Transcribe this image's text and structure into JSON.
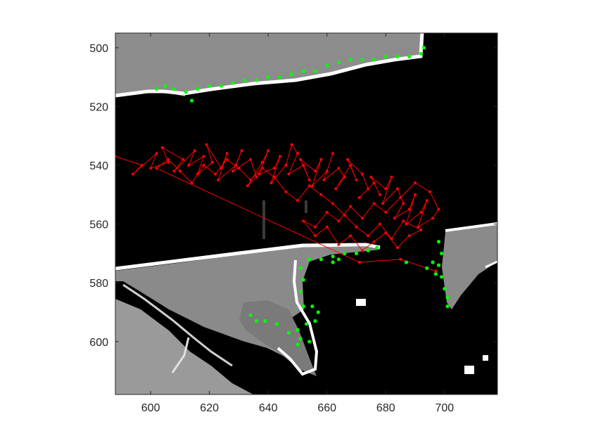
{
  "chart_data": {
    "type": "scatter",
    "title": "",
    "xlabel": "",
    "ylabel": "",
    "xlim": [
      588,
      718
    ],
    "ylim": [
      495,
      618
    ],
    "y_reversed": true,
    "grid": false,
    "background": "grayscale image",
    "xticks": [
      600,
      620,
      640,
      660,
      680,
      700
    ],
    "yticks": [
      500,
      520,
      540,
      560,
      580,
      600
    ],
    "xtick_labels": [
      "600",
      "620",
      "640",
      "660",
      "680",
      "700"
    ],
    "ytick_labels": [
      "500",
      "520",
      "540",
      "560",
      "580",
      "600"
    ],
    "series": [
      {
        "color": "#ff0000",
        "style": "line-with-markers",
        "points": [
          [
            588,
            537
          ],
          [
            597,
            540
          ],
          [
            594,
            543
          ],
          [
            602,
            536
          ],
          [
            600,
            541
          ],
          [
            606,
            539
          ],
          [
            604,
            534
          ],
          [
            611,
            538
          ],
          [
            608,
            542
          ],
          [
            615,
            535
          ],
          [
            613,
            540
          ],
          [
            618,
            537
          ],
          [
            616,
            543
          ],
          [
            621,
            539
          ],
          [
            619,
            533
          ],
          [
            624,
            541
          ],
          [
            626,
            536
          ],
          [
            623,
            545
          ],
          [
            629,
            540
          ],
          [
            631,
            535
          ],
          [
            628,
            542
          ],
          [
            634,
            538
          ],
          [
            636,
            544
          ],
          [
            633,
            547
          ],
          [
            638,
            539
          ],
          [
            640,
            535
          ],
          [
            637,
            543
          ],
          [
            642,
            541
          ],
          [
            644,
            537
          ],
          [
            641,
            546
          ],
          [
            646,
            540
          ],
          [
            648,
            533
          ],
          [
            650,
            536
          ],
          [
            647,
            543
          ],
          [
            652,
            540
          ],
          [
            654,
            545
          ],
          [
            651,
            538
          ],
          [
            656,
            542
          ],
          [
            658,
            538
          ],
          [
            655,
            547
          ],
          [
            660,
            542
          ],
          [
            662,
            536
          ],
          [
            659,
            545
          ],
          [
            664,
            541
          ],
          [
            666,
            544
          ],
          [
            663,
            548
          ],
          [
            668,
            540
          ],
          [
            670,
            545
          ],
          [
            667,
            538
          ],
          [
            672,
            543
          ],
          [
            674,
            548
          ],
          [
            671,
            551
          ],
          [
            676,
            546
          ],
          [
            678,
            550
          ],
          [
            675,
            544
          ],
          [
            680,
            548
          ],
          [
            682,
            544
          ],
          [
            679,
            553
          ],
          [
            684,
            548
          ],
          [
            686,
            553
          ],
          [
            683,
            558
          ],
          [
            688,
            555
          ],
          [
            690,
            550
          ],
          [
            687,
            560
          ],
          [
            692,
            556
          ],
          [
            694,
            552
          ],
          [
            691,
            561
          ],
          [
            696,
            558
          ],
          [
            698,
            555
          ],
          [
            695,
            549
          ],
          [
            690,
            546
          ],
          [
            685,
            551
          ],
          [
            680,
            556
          ],
          [
            676,
            553
          ],
          [
            672,
            558
          ],
          [
            668,
            554
          ],
          [
            664,
            559
          ],
          [
            660,
            556
          ],
          [
            656,
            561
          ],
          [
            652,
            559
          ],
          [
            656,
            564
          ],
          [
            660,
            561
          ],
          [
            664,
            567
          ],
          [
            668,
            564
          ],
          [
            672,
            569
          ],
          [
            676,
            566
          ],
          [
            680,
            563
          ],
          [
            684,
            568
          ],
          [
            688,
            564
          ],
          [
            692,
            562
          ],
          [
            686,
            559
          ],
          [
            682,
            565
          ],
          [
            678,
            560
          ],
          [
            674,
            564
          ],
          [
            670,
            561
          ],
          [
            666,
            557
          ],
          [
            662,
            553
          ],
          [
            658,
            550
          ],
          [
            654,
            547
          ],
          [
            650,
            552
          ],
          [
            646,
            549
          ],
          [
            642,
            544
          ],
          [
            638,
            541
          ],
          [
            634,
            545
          ],
          [
            630,
            541
          ],
          [
            626,
            538
          ],
          [
            622,
            543
          ],
          [
            618,
            540
          ],
          [
            614,
            546
          ],
          [
            610,
            542
          ],
          [
            606,
            538
          ],
          [
            602,
            541
          ],
          [
            671,
            573
          ],
          [
            685,
            572
          ],
          [
            697,
            576
          ]
        ]
      },
      {
        "color": "#00ff00",
        "style": "markers",
        "points": [
          [
            602,
            514
          ],
          [
            605,
            513
          ],
          [
            608,
            514
          ],
          [
            612,
            515
          ],
          [
            614,
            518
          ],
          [
            616,
            514
          ],
          [
            620,
            513
          ],
          [
            624,
            513
          ],
          [
            628,
            512
          ],
          [
            632,
            511
          ],
          [
            636,
            511
          ],
          [
            640,
            510
          ],
          [
            644,
            510
          ],
          [
            648,
            509
          ],
          [
            652,
            508
          ],
          [
            656,
            508
          ],
          [
            660,
            506
          ],
          [
            664,
            505
          ],
          [
            668,
            504
          ],
          [
            672,
            504
          ],
          [
            676,
            504
          ],
          [
            680,
            503
          ],
          [
            684,
            503
          ],
          [
            688,
            503
          ],
          [
            692,
            502
          ],
          [
            693,
            500
          ],
          [
            651,
            575
          ],
          [
            652,
            579
          ],
          [
            651,
            583
          ],
          [
            654,
            572
          ],
          [
            658,
            572
          ],
          [
            662,
            571
          ],
          [
            666,
            570
          ],
          [
            670,
            570
          ],
          [
            674,
            569
          ],
          [
            677,
            568
          ],
          [
            662,
            573
          ],
          [
            664,
            572
          ],
          [
            652,
            588
          ],
          [
            655,
            588
          ],
          [
            657,
            590
          ],
          [
            656,
            593
          ],
          [
            653,
            594
          ],
          [
            650,
            596
          ],
          [
            651,
            599
          ],
          [
            654,
            600
          ],
          [
            650,
            601
          ],
          [
            647,
            597
          ],
          [
            643,
            594
          ],
          [
            639,
            593
          ],
          [
            636,
            593
          ],
          [
            634,
            591
          ],
          [
            698,
            566
          ],
          [
            699,
            570
          ],
          [
            698,
            574
          ],
          [
            699,
            578
          ],
          [
            700,
            582
          ],
          [
            701,
            585
          ],
          [
            701,
            588
          ],
          [
            696,
            573
          ],
          [
            697,
            577
          ],
          [
            694,
            575
          ],
          [
            687,
            573
          ]
        ]
      }
    ]
  }
}
